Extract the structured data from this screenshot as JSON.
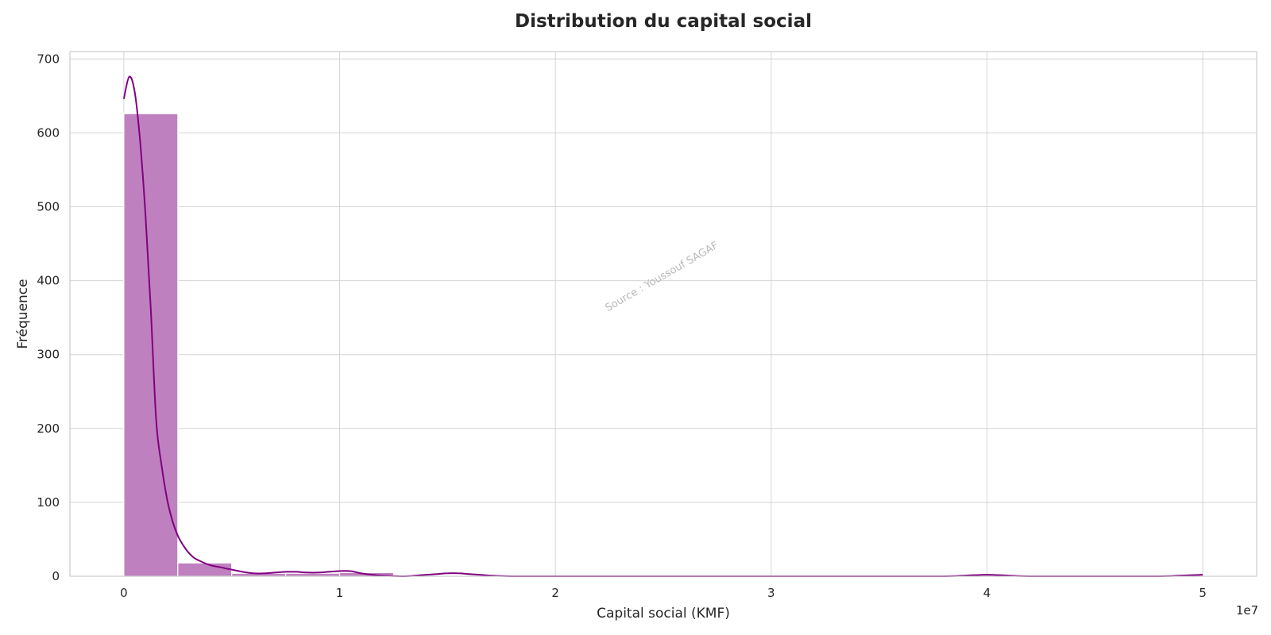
{
  "chart_data": {
    "type": "bar",
    "title": "Distribution du capital social",
    "xlabel": "Capital social (KMF)",
    "ylabel": "Fréquence",
    "x_offset_label": "1e7",
    "watermark": "Source : Youssouf SAGAF",
    "xlim": [
      -2500000,
      52500000
    ],
    "ylim": [
      0,
      710
    ],
    "x_ticks": [
      0,
      1,
      2,
      3,
      4,
      5
    ],
    "x_tick_multiplier": 10000000,
    "y_ticks": [
      0,
      100,
      200,
      300,
      400,
      500,
      600,
      700
    ],
    "grid": true,
    "bar_color": "#bf80bf",
    "bar_edge_color": "#ffffff",
    "kde_color": "#800080",
    "bins": [
      {
        "x0": 0,
        "x1": 2500000,
        "count": 626
      },
      {
        "x0": 2500000,
        "x1": 5000000,
        "count": 18
      },
      {
        "x0": 5000000,
        "x1": 7500000,
        "count": 4
      },
      {
        "x0": 7500000,
        "x1": 10000000,
        "count": 4
      },
      {
        "x0": 10000000,
        "x1": 12500000,
        "count": 5
      },
      {
        "x0": 12500000,
        "x1": 15000000,
        "count": 0
      },
      {
        "x0": 15000000,
        "x1": 17500000,
        "count": 1
      },
      {
        "x0": 17500000,
        "x1": 20000000,
        "count": 0
      },
      {
        "x0": 37500000,
        "x1": 40000000,
        "count": 1
      },
      {
        "x0": 47500000,
        "x1": 50000000,
        "count": 1
      }
    ],
    "kde": {
      "x": [
        0,
        250000,
        500000,
        750000,
        1000000,
        1250000,
        1500000,
        1750000,
        2000000,
        2250000,
        2500000,
        2750000,
        3000000,
        3250000,
        3500000,
        4000000,
        4500000,
        5000000,
        5500000,
        6000000,
        6500000,
        7000000,
        7500000,
        8000000,
        8500000,
        9000000,
        9500000,
        10000000,
        10500000,
        11000000,
        11500000,
        12000000,
        13000000,
        14000000,
        14500000,
        15000000,
        15500000,
        16000000,
        16500000,
        17000000,
        18000000,
        19000000,
        20000000,
        25000000,
        30000000,
        35000000,
        38000000,
        39000000,
        40000000,
        41000000,
        42000000,
        45000000,
        48000000,
        49000000,
        50000000
      ],
      "y": [
        646,
        676,
        656,
        590,
        490,
        360,
        210,
        150,
        105,
        75,
        55,
        42,
        32,
        25,
        21,
        15,
        12,
        9,
        6,
        4,
        4,
        5,
        6,
        6,
        5,
        5,
        6,
        7,
        7,
        4,
        2,
        1,
        0,
        2,
        3,
        4,
        4,
        3,
        2,
        1,
        0,
        0,
        0,
        0,
        0,
        0,
        0,
        1,
        2,
        1,
        0,
        0,
        0,
        1,
        2
      ]
    }
  }
}
